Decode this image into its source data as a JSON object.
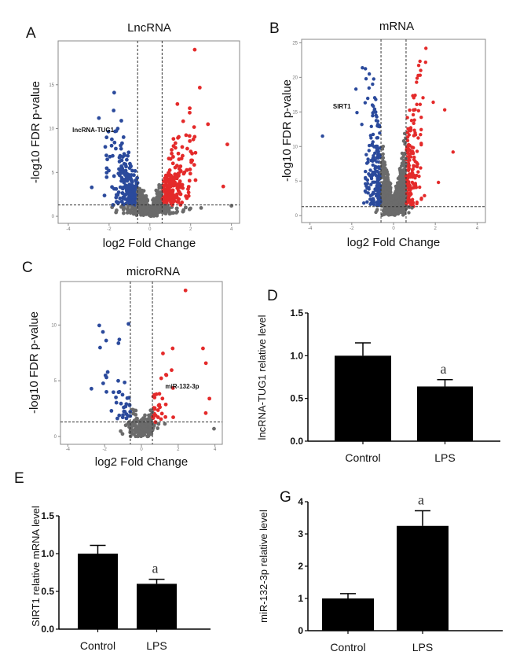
{
  "colors": {
    "down": "#2b4a9c",
    "up": "#e42a2a",
    "ns": "#6b6b6b",
    "bar": "#000000"
  },
  "chart_data": [
    {
      "panel": "A",
      "type": "scatter",
      "title": "LncRNA",
      "xlabel": "log2 Fold Change",
      "ylabel": "-log10 FDR p-value",
      "xlim": [
        -4.5,
        4.4
      ],
      "ylim": [
        -0.8,
        20
      ],
      "xticks": [
        "-4",
        "-2",
        "0",
        "2",
        "4"
      ],
      "yticks": [
        "0",
        "5",
        "10",
        "15"
      ],
      "thresholds": {
        "fold": 0.6,
        "p": 1.3
      },
      "annotation": {
        "text": "lncRNA-TUG1",
        "x": -3.8,
        "y": 9.6
      },
      "notable_points": [
        [
          2.2,
          19
        ],
        [
          -1.75,
          14.1
        ],
        [
          1.35,
          12.8
        ],
        [
          -2.5,
          11.2
        ],
        [
          3.8,
          8.2
        ],
        [
          -2.85,
          3.3
        ],
        [
          3.6,
          3.4
        ],
        [
          4.0,
          1.2
        ],
        [
          2.85,
          10.5
        ],
        [
          -1.4,
          10.9
        ]
      ]
    },
    {
      "panel": "B",
      "type": "scatter",
      "title": "mRNA",
      "xlabel": "log2 Fold Change",
      "ylabel": "-log10 FDR p-value",
      "xlim": [
        -4.4,
        4.4
      ],
      "ylim": [
        -1,
        25.5
      ],
      "xticks": [
        "-4",
        "-2",
        "0",
        "2",
        "4"
      ],
      "yticks": [
        "0",
        "5",
        "10",
        "15",
        "20",
        "25"
      ],
      "thresholds": {
        "fold": 0.6,
        "p": 1.3
      },
      "annotation": {
        "text": "SIRT1",
        "x": -2.9,
        "y": 15.5
      },
      "notable_points": [
        [
          1.55,
          24.2
        ],
        [
          1.3,
          21
        ],
        [
          -1.8,
          18.3
        ],
        [
          -0.85,
          16.8
        ],
        [
          -1.75,
          14.9
        ],
        [
          -3.4,
          11.5
        ],
        [
          2.85,
          9.2
        ],
        [
          2.45,
          15.3
        ],
        [
          1.9,
          16.4
        ],
        [
          2.15,
          4.8
        ]
      ]
    },
    {
      "panel": "C",
      "type": "scatter",
      "title": "microRNA",
      "xlabel": "log2 Fold Change",
      "ylabel": "-log10 FDR p-value",
      "xlim": [
        -4.4,
        4.4
      ],
      "ylim": [
        -0.7,
        13.9
      ],
      "xticks": [
        "-4",
        "-2",
        "0",
        "2",
        "4"
      ],
      "yticks": [
        "0",
        "5",
        "10"
      ],
      "thresholds": {
        "fold": 0.6,
        "p": 1.3
      },
      "annotation": {
        "text": "miR-132-3p",
        "x": 1.3,
        "y": 4.3
      },
      "notable_points": [
        [
          2.4,
          13.1
        ],
        [
          1.7,
          7.9
        ],
        [
          3.35,
          7.9
        ],
        [
          -0.7,
          10.1
        ],
        [
          -1.2,
          8.7
        ],
        [
          3.5,
          2.1
        ],
        [
          3.7,
          3.4
        ],
        [
          -1.9,
          4.0
        ],
        [
          -1.9,
          5.3
        ],
        [
          3.95,
          0.7
        ]
      ]
    },
    {
      "panel": "D",
      "type": "bar",
      "ylabel": "lncRNA-TUG1 relative level",
      "categories": [
        "Control",
        "LPS"
      ],
      "values": [
        1.0,
        0.64
      ],
      "errors": [
        0.15,
        0.08
      ],
      "ylim": [
        0,
        1.5
      ],
      "yticks": [
        "0.0",
        "0.5",
        "1.0",
        "1.5"
      ],
      "significance": [
        "",
        "a"
      ]
    },
    {
      "panel": "E",
      "type": "bar",
      "ylabel": "SIRT1 relative mRNA level",
      "categories": [
        "Control",
        "LPS"
      ],
      "values": [
        1.0,
        0.6
      ],
      "errors": [
        0.11,
        0.06
      ],
      "ylim": [
        0,
        1.5
      ],
      "yticks": [
        "0.0",
        "0.5",
        "1.0",
        "1.5"
      ],
      "significance": [
        "",
        "a"
      ]
    },
    {
      "panel": "G",
      "type": "bar",
      "ylabel": "miR-132-3p relative level",
      "categories": [
        "Control",
        "LPS"
      ],
      "values": [
        1.0,
        3.25
      ],
      "errors": [
        0.15,
        0.47
      ],
      "ylim": [
        0,
        4
      ],
      "yticks": [
        "0",
        "1",
        "2",
        "3",
        "4"
      ],
      "significance": [
        "",
        "a"
      ]
    }
  ]
}
